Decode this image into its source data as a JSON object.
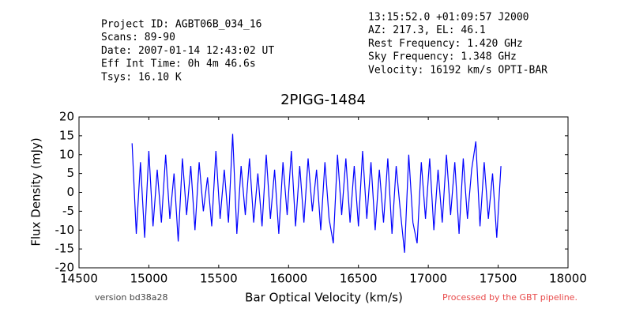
{
  "chart_data": {
    "type": "line",
    "title": "2PIGG-1484",
    "header_left": [
      "Project ID: AGBT06B_034_16",
      "Scans: 89-90",
      "Date: 2007-01-14 12:43:02 UT",
      "Eff Int Time: 0h 4m 46.6s",
      "Tsys: 16.10 K"
    ],
    "header_right": [
      "13:15:52.0 +01:09:57 J2000",
      "AZ: 217.3, EL: 46.1",
      "Rest Frequency:    1.420 GHz",
      "Sky Frequency:     1.348 GHz",
      "Velocity: 16192 km/s OPTI-BAR"
    ],
    "x_label": "Bar Optical Velocity (km/s)",
    "y_label": "Flux Density (mJy)",
    "footer_left": "version bd38a28",
    "footer_right": "Processed by the GBT pipeline.",
    "xlim": [
      14500,
      18000
    ],
    "xticks": [
      14500,
      15000,
      15500,
      16000,
      16500,
      17000,
      17500,
      18000
    ],
    "ylim": [
      -20,
      20
    ],
    "yticks": [
      -20,
      -15,
      -10,
      -5,
      0,
      5,
      10,
      15,
      20
    ],
    "series": [
      {
        "color": "#0000ff",
        "x": [
          14880,
          14910,
          14940,
          14970,
          15000,
          15030,
          15060,
          15090,
          15120,
          15150,
          15180,
          15210,
          15240,
          15270,
          15300,
          15330,
          15360,
          15390,
          15420,
          15450,
          15480,
          15510,
          15540,
          15570,
          15600,
          15630,
          15660,
          15690,
          15720,
          15750,
          15780,
          15810,
          15840,
          15870,
          15900,
          15930,
          15960,
          15990,
          16020,
          16050,
          16080,
          16110,
          16140,
          16170,
          16200,
          16230,
          16260,
          16290,
          16320,
          16350,
          16380,
          16410,
          16440,
          16470,
          16500,
          16530,
          16560,
          16590,
          16620,
          16650,
          16680,
          16710,
          16740,
          16770,
          16800,
          16830,
          16860,
          16890,
          16920,
          16950,
          16980,
          17010,
          17040,
          17070,
          17100,
          17130,
          17160,
          17190,
          17220,
          17250,
          17280,
          17310,
          17340,
          17370,
          17400,
          17430,
          17460,
          17490,
          17520
        ],
        "values": [
          13,
          -11,
          8,
          -12,
          11,
          -9,
          6,
          -8,
          10,
          -7,
          5,
          -13,
          9,
          -6,
          7,
          -10,
          8,
          -5,
          4,
          -9,
          11,
          -7,
          6,
          -8,
          15.5,
          -11,
          7,
          -6,
          9,
          -8,
          5,
          -9,
          10,
          -7,
          6,
          -11,
          8,
          -6,
          11,
          -9,
          7,
          -8,
          9,
          -5,
          6,
          -10,
          8,
          -7,
          -13.5,
          10,
          -6,
          9,
          -8,
          7,
          -9,
          11,
          -7,
          8,
          -10,
          6,
          -8,
          9,
          -11,
          7,
          -5,
          -16,
          10,
          -8,
          -13.5,
          8,
          -7,
          9,
          -10,
          6,
          -8,
          10,
          -6,
          8,
          -11,
          9,
          -7,
          6,
          13.5,
          -9,
          8,
          -7,
          5,
          -12,
          7
        ]
      }
    ]
  }
}
